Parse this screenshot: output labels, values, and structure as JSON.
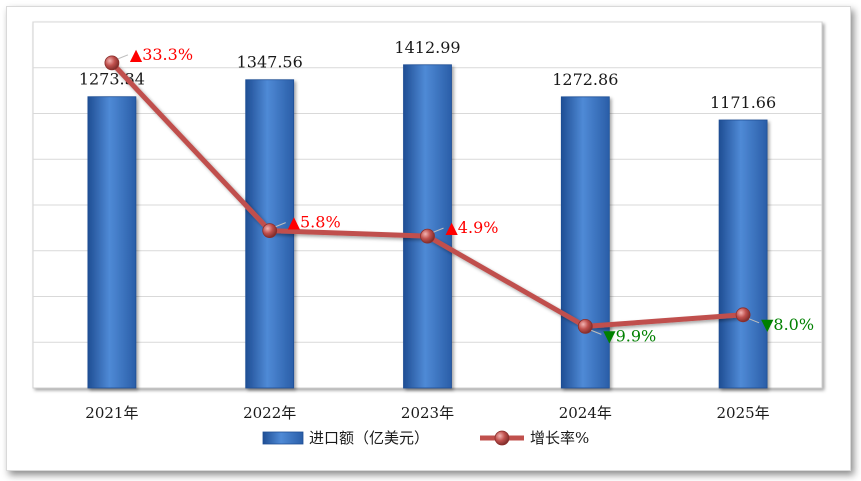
{
  "chart_data": {
    "type": "bar",
    "categories": [
      "2021年",
      "2022年",
      "2023年",
      "2024年",
      "2025年"
    ],
    "series": [
      {
        "name": "进口额（亿美元）",
        "type": "bar",
        "axis": "left",
        "values": [
          1273.34,
          1347.56,
          1412.99,
          1272.86,
          1171.66
        ],
        "labels": [
          "1273.34",
          "1347.56",
          "1412.99",
          "1272.86",
          "1171.66"
        ]
      },
      {
        "name": "增长率%",
        "type": "line",
        "axis": "right",
        "values": [
          33.3,
          5.8,
          4.9,
          -9.9,
          -8.0
        ],
        "labels": [
          "▲33.3%",
          "▲5.8%",
          "▲4.9%",
          "▼9.9%",
          "▼8.0%"
        ]
      }
    ],
    "ylim": [
      0,
      1600
    ],
    "y2lim": [
      -20,
      40
    ],
    "grid": true,
    "legend": "bottom",
    "colors": {
      "bar": "#3a74c4",
      "line": "#c0504d",
      "up": "#ff0000",
      "down": "#008000"
    }
  }
}
